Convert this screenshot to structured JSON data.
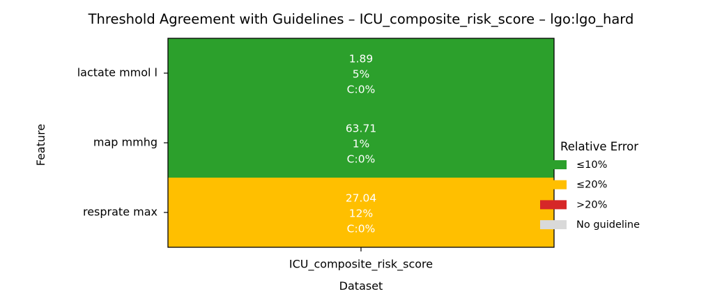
{
  "chart_data": {
    "type": "heatmap",
    "title": "Threshold Agreement with Guidelines – ICU_composite_risk_score – lgo:lgo_hard",
    "xlabel": "Dataset",
    "ylabel": "Feature",
    "columns": [
      "ICU_composite_risk_score"
    ],
    "rows": [
      {
        "feature": "lactate mmol l",
        "value": "1.89",
        "rel_error": "5%",
        "coverage": "C:0%",
        "category": "≤10%"
      },
      {
        "feature": "map mmhg",
        "value": "63.71",
        "rel_error": "1%",
        "coverage": "C:0%",
        "category": "≤10%"
      },
      {
        "feature": "resprate max",
        "value": "27.04",
        "rel_error": "12%",
        "coverage": "C:0%",
        "category": "≤20%"
      }
    ],
    "legend": {
      "title": "Relative Error",
      "placement": "right",
      "items": [
        {
          "label": "≤10%",
          "color": "#2ca02c"
        },
        {
          "label": "≤20%",
          "color": "#ffbf00"
        },
        {
          "label": ">20%",
          "color": "#d62728"
        },
        {
          "label": "No guideline",
          "color": "#d9d9d9"
        }
      ]
    }
  }
}
